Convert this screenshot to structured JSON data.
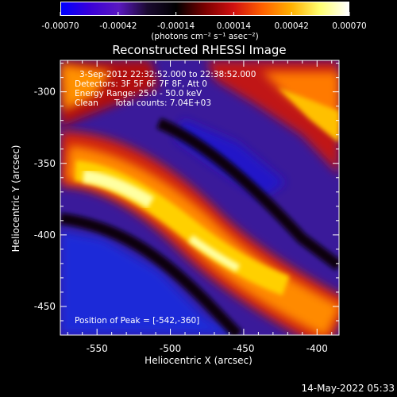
{
  "colorbar": {
    "ticks": [
      "-0.00070",
      "-0.00042",
      "-0.00014",
      "0.00014",
      "0.00042",
      "0.00070"
    ],
    "unit_label": "(photons cm⁻² s⁻¹ asec⁻²)",
    "gradient": [
      "#0000ff",
      "#3a00d8",
      "#5a18c0",
      "#1a0a30",
      "#000000",
      "#7a0000",
      "#d01010",
      "#ff6000",
      "#ffb000",
      "#ffff70",
      "#ffffff"
    ]
  },
  "title": "Reconstructed RHESSI Image",
  "info": {
    "line1": "3-Sep-2012 22:32:52.000 to 22:38:52.000",
    "line2": "Detectors: 3F 5F 6F 7F 8F, Att 0",
    "line3": "Energy Range: 25.0 - 50.0 keV",
    "line4_a": "Clean",
    "line4_b": "Total counts: 7.04E+03"
  },
  "peak_label": "Position of Peak = [-542,-360]",
  "axes": {
    "xlabel": "Heliocentric X (arcsec)",
    "ylabel": "Heliocentric Y (arcsec)",
    "x_ticks": [
      "-550",
      "-500",
      "-450",
      "-400"
    ],
    "y_ticks": [
      "-300",
      "-350",
      "-400",
      "-450"
    ]
  },
  "timestamp": "14-May-2022 05:33"
}
